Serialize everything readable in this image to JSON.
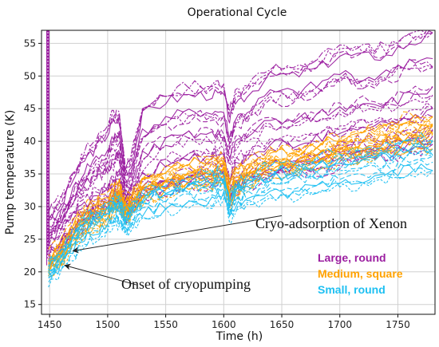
{
  "chart_data": {
    "type": "line",
    "title": "Operational Cycle",
    "xlabel": "Time (h)",
    "ylabel": "Pump temperature (K)",
    "xlim": [
      1443,
      1782
    ],
    "ylim": [
      13.5,
      57
    ],
    "xticks": [
      1450,
      1500,
      1550,
      1600,
      1650,
      1700,
      1750
    ],
    "yticks": [
      15,
      20,
      25,
      30,
      35,
      40,
      45,
      50,
      55
    ],
    "grid": true,
    "legend_placement": "lower-right",
    "series": [
      {
        "name": "Large, round",
        "color": "#9b1ea0",
        "x": [
          1449,
          1460,
          1470,
          1480,
          1490,
          1500,
          1505,
          1510,
          1515,
          1520,
          1530,
          1550,
          1570,
          1590,
          1600,
          1605,
          1610,
          1620,
          1640,
          1660,
          1680,
          1700,
          1720,
          1740,
          1760,
          1780
        ],
        "lines": [
          [
            29,
            31,
            35,
            38,
            40,
            42,
            44,
            44,
            36,
            37,
            45,
            47,
            48,
            48,
            48,
            44,
            47,
            48,
            51,
            51,
            52,
            54,
            54,
            54,
            56,
            57
          ],
          [
            27,
            29,
            32,
            35,
            37,
            38,
            40,
            41,
            34,
            35,
            41,
            43,
            44,
            44,
            44,
            40,
            43,
            44,
            47,
            47,
            48,
            50,
            49,
            50,
            52,
            52
          ],
          [
            26,
            28,
            31,
            33,
            35,
            36,
            37,
            38,
            32,
            33,
            38,
            40,
            41,
            41,
            41,
            37,
            40,
            41,
            43,
            43,
            44,
            45,
            46,
            46,
            47,
            48
          ],
          [
            25,
            27,
            29,
            31,
            32,
            33,
            34,
            35,
            31,
            32,
            35,
            37,
            38,
            38,
            38,
            34,
            37,
            38,
            40,
            40,
            41,
            42,
            43,
            43,
            44,
            45
          ],
          [
            23,
            25,
            27,
            29,
            30,
            31,
            32,
            33,
            30,
            31,
            33,
            34,
            35,
            36,
            36,
            32,
            34,
            35,
            37,
            37,
            38,
            39,
            40,
            40,
            41,
            42
          ],
          [
            22,
            24,
            26,
            28,
            29,
            30,
            31,
            31,
            29,
            30,
            32,
            33,
            34,
            34,
            35,
            31,
            33,
            34,
            35,
            36,
            36,
            37,
            38,
            38,
            39,
            40
          ]
        ]
      },
      {
        "name": "Medium, square",
        "color": "#ffa200",
        "x": [
          1449,
          1460,
          1470,
          1480,
          1490,
          1500,
          1505,
          1510,
          1515,
          1520,
          1530,
          1550,
          1570,
          1590,
          1600,
          1605,
          1610,
          1620,
          1640,
          1660,
          1680,
          1700,
          1720,
          1740,
          1760,
          1780
        ],
        "lines": [
          [
            22,
            24,
            27,
            29,
            30,
            31,
            32,
            33,
            30,
            31,
            34,
            35,
            36,
            37,
            37,
            33,
            35,
            36,
            38,
            38,
            39,
            40,
            41,
            42,
            43,
            43
          ],
          [
            21,
            23,
            26,
            28,
            29,
            30,
            31,
            32,
            29,
            30,
            33,
            34,
            35,
            35,
            36,
            32,
            34,
            35,
            37,
            37,
            38,
            39,
            39,
            40,
            41,
            42
          ],
          [
            21,
            22,
            25,
            27,
            28,
            29,
            30,
            31,
            29,
            30,
            32,
            33,
            34,
            34,
            35,
            31,
            33,
            34,
            36,
            36,
            37,
            38,
            38,
            39,
            40,
            40
          ]
        ]
      },
      {
        "name": "Small, round",
        "color": "#1ec0f2",
        "x": [
          1449,
          1460,
          1470,
          1480,
          1490,
          1500,
          1505,
          1510,
          1515,
          1520,
          1530,
          1550,
          1570,
          1590,
          1600,
          1605,
          1610,
          1620,
          1640,
          1660,
          1680,
          1700,
          1720,
          1740,
          1760,
          1780
        ],
        "lines": [
          [
            21,
            23,
            26,
            28,
            29,
            30,
            31,
            31,
            29,
            30,
            32,
            33,
            34,
            35,
            35,
            31,
            33,
            34,
            36,
            36,
            37,
            38,
            38,
            39,
            40,
            40
          ],
          [
            20,
            22,
            25,
            27,
            28,
            29,
            30,
            30,
            28,
            29,
            31,
            32,
            33,
            33,
            34,
            30,
            32,
            33,
            34,
            35,
            35,
            36,
            37,
            37,
            38,
            38
          ],
          [
            19,
            21,
            23,
            25,
            26,
            27,
            28,
            28,
            27,
            27,
            29,
            30,
            31,
            31,
            32,
            29,
            30,
            31,
            32,
            32,
            33,
            34,
            34,
            35,
            36,
            36
          ]
        ]
      }
    ],
    "annotations": [
      {
        "text": "Cryo-adsorption of Xenon",
        "arrow_from": [
          1650,
          28.6
        ],
        "arrow_to": [
          1470,
          23.2
        ]
      },
      {
        "text": "Onset of cryopumping",
        "arrow_from": [
          1525,
          18.0
        ],
        "arrow_to": [
          1463,
          21.0
        ]
      }
    ]
  }
}
